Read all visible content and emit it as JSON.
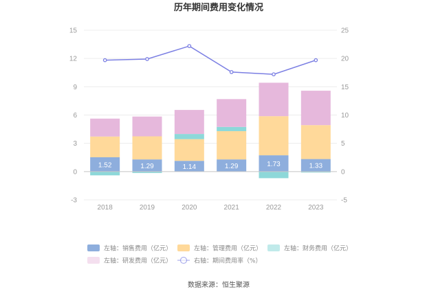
{
  "chart_data": {
    "type": "bar",
    "title": "历年期间费用变化情况",
    "stacked": true,
    "categories": [
      "2018",
      "2019",
      "2020",
      "2021",
      "2022",
      "2023"
    ],
    "left_axis": {
      "ylim": [
        -3,
        15
      ],
      "ticks": [
        "15",
        "12",
        "9",
        "6",
        "3",
        "0",
        "-3"
      ],
      "tick_values": [
        15,
        12,
        9,
        6,
        3,
        0,
        -3
      ]
    },
    "right_axis": {
      "ylim": [
        -5,
        25
      ],
      "ticks": [
        "25",
        "20",
        "15",
        "10",
        "5",
        "0",
        "-5"
      ],
      "tick_values": [
        25,
        20,
        15,
        10,
        5,
        0,
        -5
      ]
    },
    "grid": true,
    "series": [
      {
        "name": "左轴：销售费用（亿元）",
        "axis": "left",
        "kind": "bar",
        "color": "#8eaedd",
        "values": [
          1.52,
          1.29,
          1.14,
          1.29,
          1.73,
          1.33
        ],
        "labels": [
          "1.52",
          "1.29",
          "1.14",
          "1.29",
          "1.73",
          "1.33"
        ]
      },
      {
        "name": "左轴：管理费用（亿元）",
        "axis": "left",
        "kind": "bar",
        "color": "#ffd99a",
        "values": [
          2.2,
          2.45,
          2.3,
          3.0,
          4.15,
          3.6
        ]
      },
      {
        "name": "左轴：财务费用（亿元）",
        "axis": "left",
        "kind": "bar",
        "color": "#8dd8d9",
        "values": [
          -0.4,
          -0.15,
          0.55,
          0.45,
          -0.7,
          -0.1
        ]
      },
      {
        "name": "左轴：研发费用（亿元）",
        "axis": "left",
        "kind": "bar",
        "color": "#e6b8dc",
        "values": [
          1.9,
          2.1,
          2.55,
          2.95,
          3.55,
          3.65
        ]
      },
      {
        "name": "右轴：期间费用率（%）",
        "axis": "right",
        "kind": "line",
        "color": "#7b7fe3",
        "values": [
          19.7,
          19.9,
          22.2,
          17.6,
          17.2,
          19.7
        ]
      }
    ],
    "legend_position": "bottom",
    "source": "数据来源：恒生聚源"
  }
}
